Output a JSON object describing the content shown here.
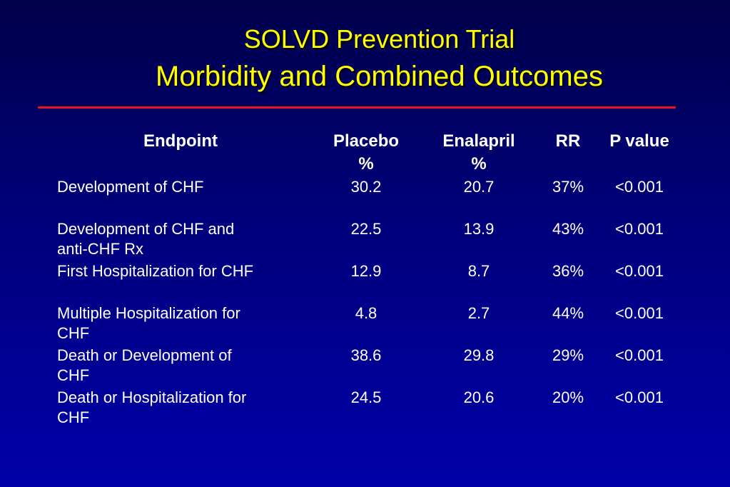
{
  "slide": {
    "title_line1": "SOLVD Prevention Trial",
    "title_line2": "Morbidity and Combined Outcomes",
    "accent_color": "#ffff00",
    "rule_color": "#e8141e",
    "background_color": "#00007a"
  },
  "table": {
    "headers": {
      "endpoint": "Endpoint",
      "placebo": "Placebo\n%",
      "enalapril": "Enalapril\n%",
      "rr": "RR",
      "pvalue": "P value"
    },
    "rows": [
      {
        "endpoint": "Development of CHF",
        "placebo": "30.2",
        "enalapril": "20.7",
        "rr": "37%",
        "pvalue": "<0.001"
      },
      {
        "endpoint": "Development of CHF and\nanti-CHF Rx",
        "placebo": "22.5",
        "enalapril": "13.9",
        "rr": "43%",
        "pvalue": "<0.001"
      },
      {
        "endpoint": "First Hospitalization for CHF",
        "placebo": "12.9",
        "enalapril": "8.7",
        "rr": "36%",
        "pvalue": "<0.001"
      },
      {
        "endpoint": "Multiple Hospitalization for\nCHF",
        "placebo": "4.8",
        "enalapril": "2.7",
        "rr": "44%",
        "pvalue": "<0.001"
      },
      {
        "endpoint": "Death or Development of\nCHF",
        "placebo": "38.6",
        "enalapril": "29.8",
        "rr": "29%",
        "pvalue": "<0.001"
      },
      {
        "endpoint": "Death or Hospitalization for\nCHF",
        "placebo": "24.5",
        "enalapril": "20.6",
        "rr": "20%",
        "pvalue": "<0.001"
      }
    ]
  }
}
